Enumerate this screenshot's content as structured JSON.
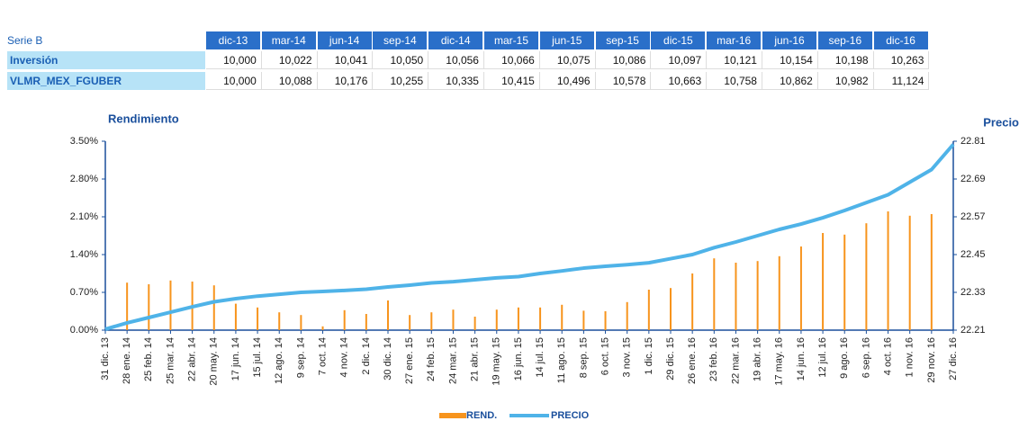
{
  "table": {
    "header": [
      "Serie B",
      "dic-13",
      "mar-14",
      "jun-14",
      "sep-14",
      "dic-14",
      "mar-15",
      "jun-15",
      "sep-15",
      "dic-15",
      "mar-16",
      "jun-16",
      "sep-16",
      "dic-16"
    ],
    "rows": [
      [
        "Inversión",
        "10,000",
        "10,022",
        "10,041",
        "10,050",
        "10,056",
        "10,066",
        "10,075",
        "10,086",
        "10,097",
        "10,121",
        "10,154",
        "10,198",
        "10,263"
      ],
      [
        "VLMR_MEX_FGUBER",
        "10,000",
        "10,088",
        "10,176",
        "10,255",
        "10,335",
        "10,415",
        "10,496",
        "10,578",
        "10,663",
        "10,758",
        "10,862",
        "10,982",
        "11,124"
      ]
    ]
  },
  "chart_data": {
    "type": "bar_line",
    "ylabel": "Rendimiento",
    "y2label": "Precio",
    "categories": [
      "31 dic. 13",
      "28 ene. 14",
      "25 feb. 14",
      "25 mar. 14",
      "22 abr. 14",
      "20 may. 14",
      "17 jun. 14",
      "15 jul. 14",
      "12 ago. 14",
      "9 sep. 14",
      "7 oct. 14",
      "4 nov. 14",
      "2 dic. 14",
      "30 dic. 14",
      "27 ene. 15",
      "24 feb. 15",
      "24 mar. 15",
      "21 abr. 15",
      "19 may. 15",
      "16 jun. 15",
      "14 jul. 15",
      "11 ago. 15",
      "8 sep. 15",
      "6 oct. 15",
      "3 nov. 15",
      "1 dic. 15",
      "29 dic. 15",
      "26 ene. 16",
      "23 feb. 16",
      "22 mar. 16",
      "19 abr. 16",
      "17 may. 16",
      "14 jun. 16",
      "12 jul. 16",
      "9 ago. 16",
      "6 sep. 16",
      "4 oct. 16",
      "1 nov. 16",
      "29 nov. 16",
      "27 dic. 16"
    ],
    "series": [
      {
        "name": "REND.",
        "color": "#f7941d",
        "kind": "bar",
        "values": [
          null,
          0.88,
          0.85,
          0.92,
          0.9,
          0.83,
          0.49,
          0.42,
          0.33,
          0.28,
          0.07,
          0.37,
          0.3,
          0.55,
          0.28,
          0.33,
          0.38,
          0.25,
          0.38,
          0.42,
          0.42,
          0.47,
          0.36,
          0.35,
          0.52,
          0.75,
          0.78,
          1.05,
          1.33,
          1.25,
          1.28,
          1.37,
          1.55,
          1.8,
          1.77,
          1.98,
          2.2,
          2.12,
          2.15,
          null
        ]
      },
      {
        "name": "PRECIO",
        "color": "#4fb3e8",
        "kind": "line",
        "axis": "y2",
        "values": [
          22.213,
          22.233,
          22.25,
          22.267,
          22.284,
          22.3,
          22.31,
          22.318,
          22.324,
          22.33,
          22.333,
          22.336,
          22.34,
          22.347,
          22.353,
          22.36,
          22.364,
          22.37,
          22.376,
          22.38,
          22.39,
          22.398,
          22.407,
          22.413,
          22.418,
          22.424,
          22.437,
          22.45,
          22.472,
          22.49,
          22.51,
          22.53,
          22.547,
          22.567,
          22.59,
          22.615,
          22.64,
          22.68,
          22.72,
          22.8
        ]
      }
    ],
    "ylim": [
      0,
      3.5
    ],
    "yticks": [
      {
        "value": 0,
        "label": "0.00%"
      },
      {
        "value": 0.7,
        "label": "0.70%"
      },
      {
        "value": 1.4,
        "label": "1.40%"
      },
      {
        "value": 2.1,
        "label": "2.10%"
      },
      {
        "value": 2.8,
        "label": "2.80%"
      },
      {
        "value": 3.5,
        "label": "3.50%"
      }
    ],
    "y2lim": [
      22.21,
      22.81
    ],
    "y2ticks": [
      22.21,
      22.33,
      22.45,
      22.57,
      22.69,
      22.81
    ],
    "grid": false,
    "legend": "bottom"
  }
}
